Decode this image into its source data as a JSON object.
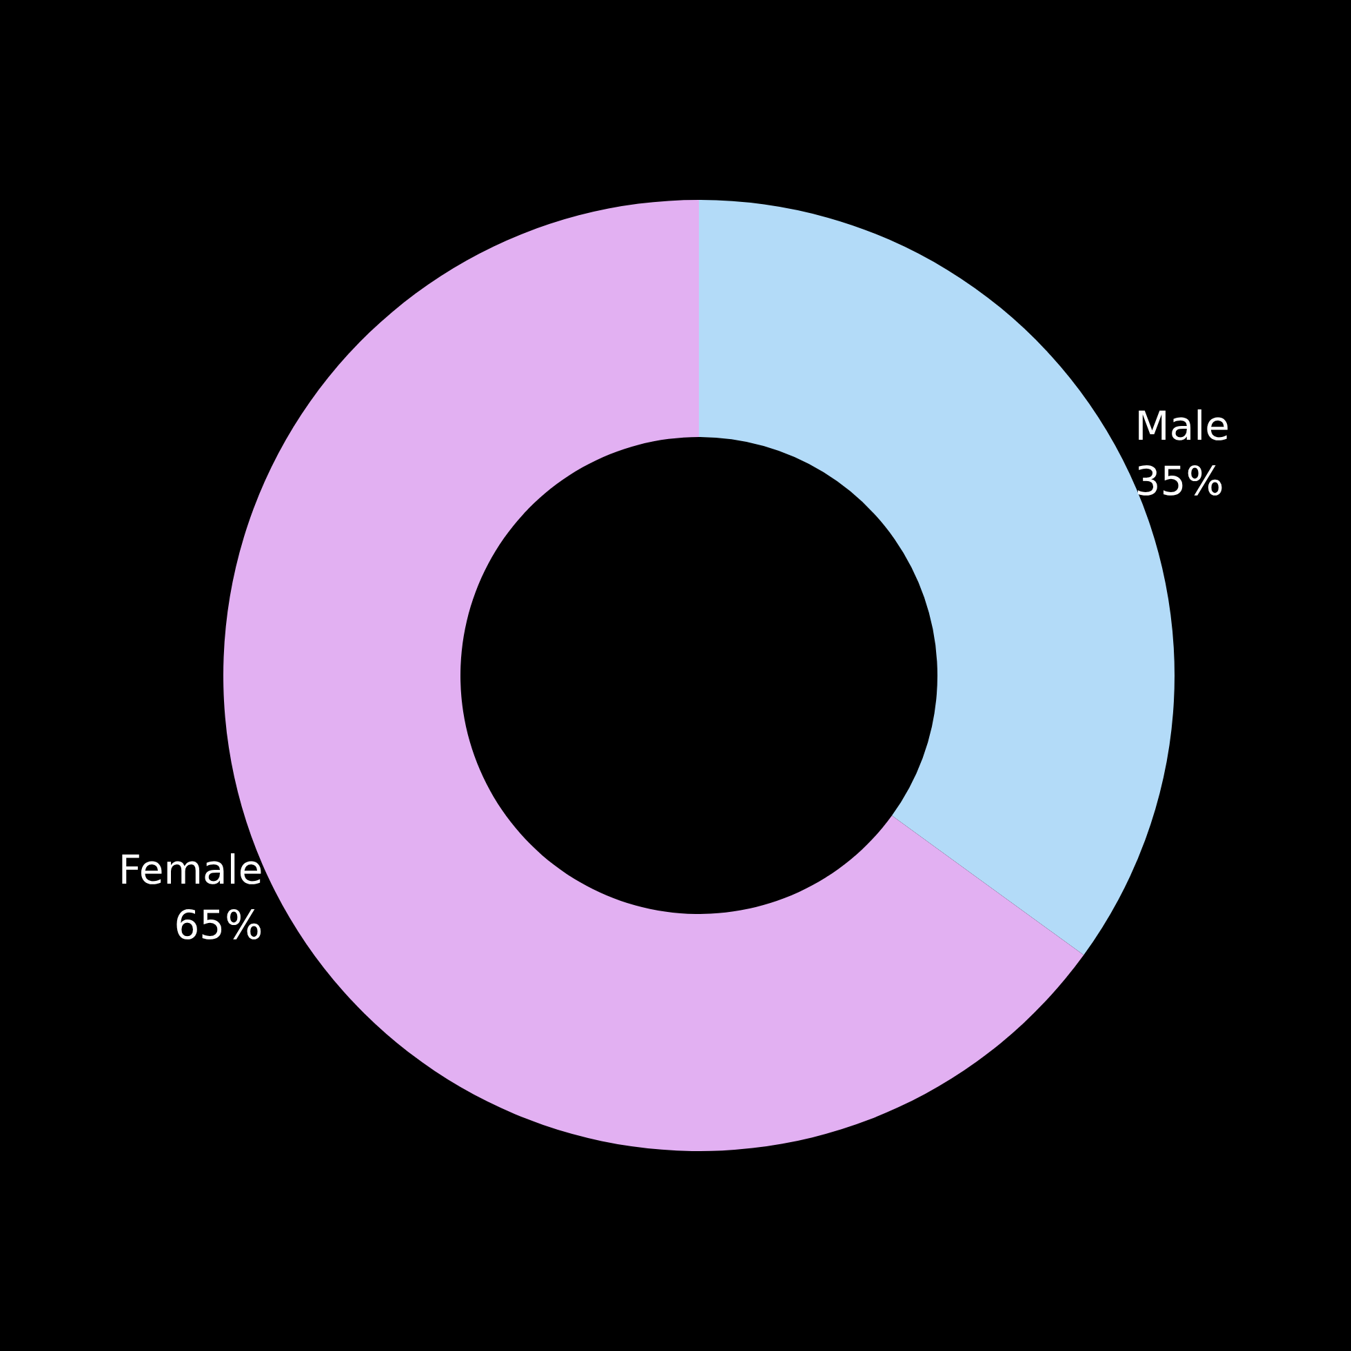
{
  "chart_data": {
    "type": "donut",
    "categories": [
      "Male",
      "Female"
    ],
    "values": [
      35,
      65
    ],
    "colors": [
      "#b3dbf8",
      "#e2b0f2"
    ],
    "value_labels": [
      "35%",
      "65%"
    ]
  }
}
